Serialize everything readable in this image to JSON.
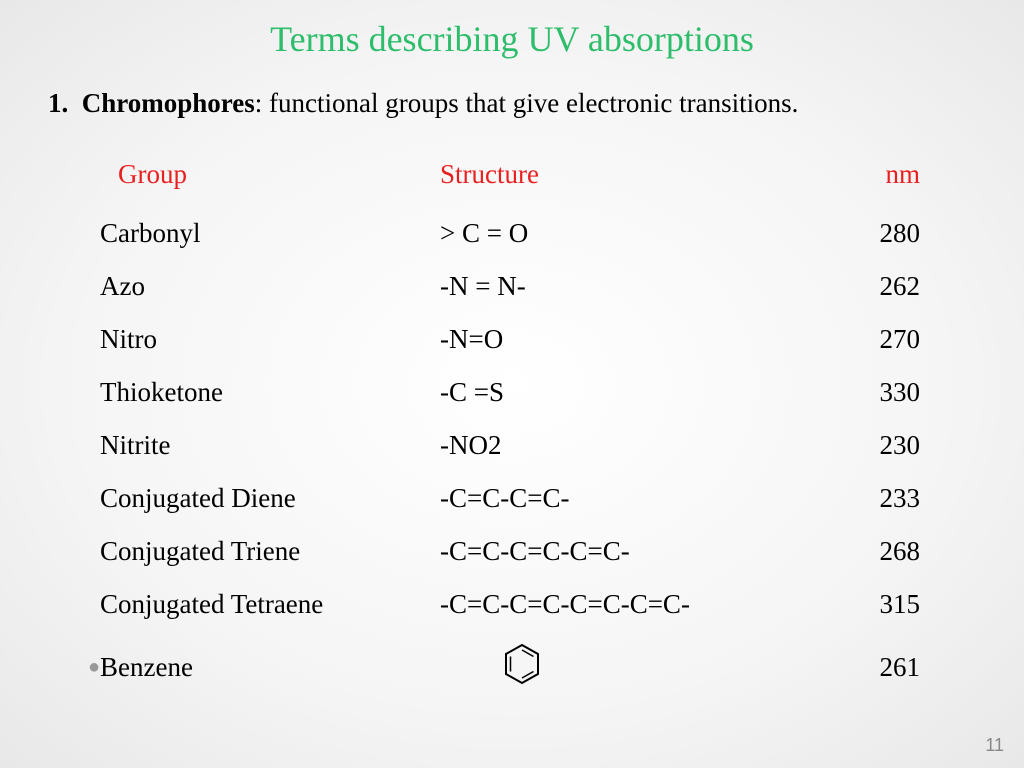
{
  "colors": {
    "title": "#2ebd6b",
    "header": "#e82020",
    "text": "#000000",
    "bullet": "#999999",
    "pagenum": "#888888"
  },
  "title": "Terms describing UV absorptions",
  "definition": {
    "number": "1.",
    "term": "Chromophores",
    "desc": ": functional groups that give electronic transitions."
  },
  "headers": {
    "group": "Group",
    "structure": "Structure",
    "nm": "nm"
  },
  "rows": [
    {
      "group": "Carbonyl",
      "structure": "> C = O",
      "nm": "280"
    },
    {
      "group": "Azo",
      "structure": "-N = N-",
      "nm": "262"
    },
    {
      "group": "Nitro",
      "structure": "-N=O",
      "nm": "270"
    },
    {
      "group": "Thioketone",
      "structure": "-C =S",
      "nm": "330"
    },
    {
      "group": "Nitrite",
      "structure": "-NO2",
      "nm": "230"
    },
    {
      "group": "Conjugated Diene",
      "structure": "-C=C-C=C-",
      "nm": "233"
    },
    {
      "group": "Conjugated Triene",
      "structure": "-C=C-C=C-C=C-",
      "nm": "268"
    },
    {
      "group": "Conjugated Tetraene",
      "structure": "-C=C-C=C-C=C-C=C-",
      "nm": "315"
    },
    {
      "group": "Benzene",
      "structure": "",
      "nm": "261",
      "icon": "benzene"
    }
  ],
  "pageNumber": "11"
}
